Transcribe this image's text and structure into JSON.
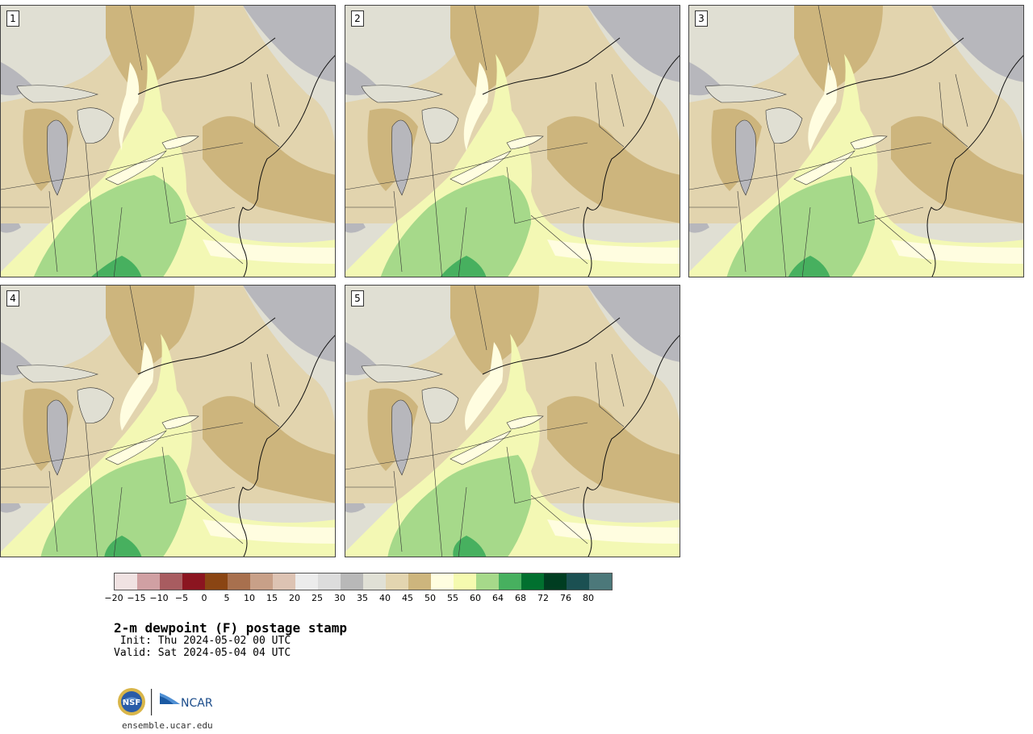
{
  "panels": [
    {
      "label": "1"
    },
    {
      "label": "2"
    },
    {
      "label": "3"
    },
    {
      "label": "4"
    },
    {
      "label": "5"
    }
  ],
  "colorbar": {
    "colors": [
      "#f0e2e2",
      "#d0a0a3",
      "#a85c60",
      "#8b1520",
      "#8a4513",
      "#a8704e",
      "#c8a088",
      "#ddc3b3",
      "#ececec",
      "#dcdcdc",
      "#b8b8b8",
      "#e0e0d5",
      "#e3d5b0",
      "#cdb57d",
      "#fffde0",
      "#f5faaf",
      "#a6d98a",
      "#47b05f",
      "#01702f",
      "#003d21",
      "#1b5052",
      "#4c787a"
    ],
    "ticks": [
      "−20",
      "−15",
      "−10",
      "−5",
      "0",
      "5",
      "10",
      "15",
      "20",
      "25",
      "30",
      "35",
      "40",
      "45",
      "50",
      "55",
      "60",
      "64",
      "68",
      "72",
      "76",
      "80"
    ]
  },
  "title": "2-m dewpoint (F) postage stamp",
  "init": " Init: Thu 2024-05-02 00 UTC",
  "valid": "Valid: Sat 2024-05-04 04 UTC",
  "logos": [
    "NSF",
    "NCAR"
  ],
  "website": "ensemble.ucar.edu"
}
